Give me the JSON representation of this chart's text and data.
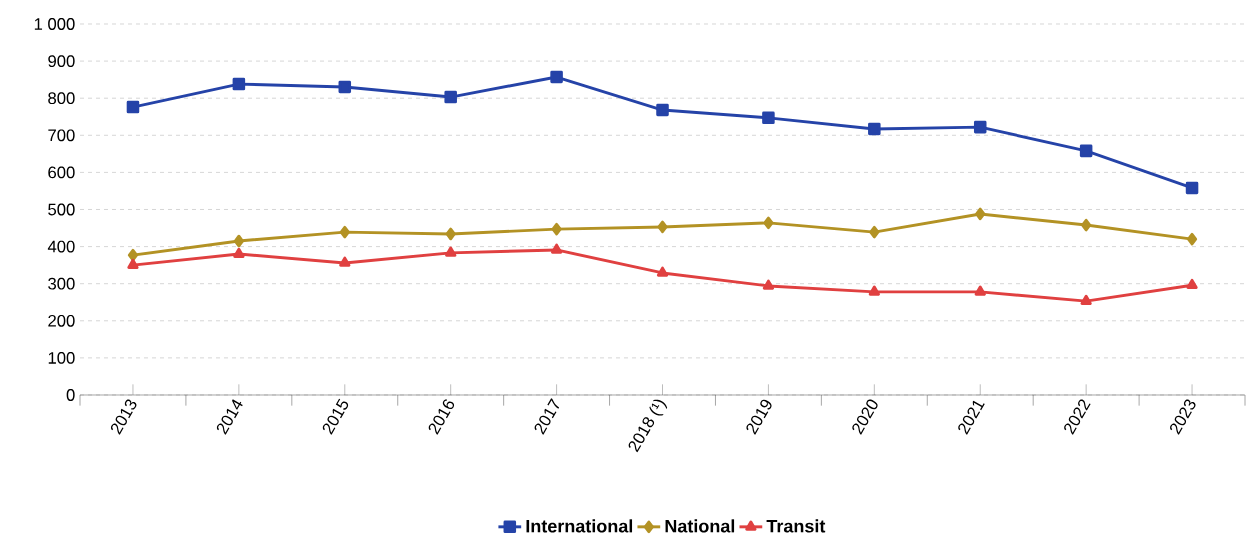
{
  "chart_data": {
    "type": "line",
    "categories": [
      "2013",
      "2014",
      "2015",
      "2016",
      "2017",
      "2018 (¹)",
      "2019",
      "2020",
      "2021",
      "2022",
      "2023"
    ],
    "series": [
      {
        "name": "International",
        "color": "#2543a8",
        "marker": "square",
        "values": [
          776,
          838,
          830,
          803,
          857,
          768,
          747,
          717,
          722,
          658,
          558
        ]
      },
      {
        "name": "National",
        "color": "#b39224",
        "marker": "diamond",
        "values": [
          377,
          415,
          439,
          434,
          447,
          453,
          464,
          439,
          488,
          458,
          420
        ]
      },
      {
        "name": "Transit",
        "color": "#e04040",
        "marker": "triangle",
        "values": [
          350,
          380,
          356,
          383,
          391,
          329,
          294,
          278,
          278,
          253,
          296
        ]
      }
    ],
    "ylim": [
      0,
      1000
    ],
    "yticks": [
      0,
      100,
      200,
      300,
      400,
      500,
      600,
      700,
      800,
      900,
      {
        "value": 1000,
        "label": "1 000"
      }
    ],
    "grid": "y",
    "legend": "bottom",
    "line_style": "solid"
  }
}
